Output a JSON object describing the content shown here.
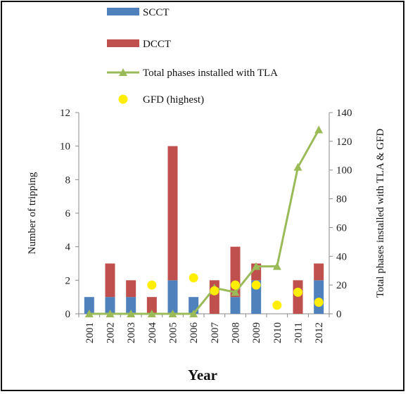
{
  "chart_data": {
    "type": "bar",
    "categories": [
      "2001",
      "2002",
      "2003",
      "2004",
      "2005",
      "2006",
      "2007",
      "2008",
      "2009",
      "2010",
      "2011",
      "2012"
    ],
    "series": [
      {
        "name": "SCCT",
        "kind": "bar",
        "axis": "left",
        "color": "#4f81bd",
        "values": [
          1,
          1,
          1,
          0,
          2,
          1,
          0,
          1,
          2,
          0,
          0,
          2
        ]
      },
      {
        "name": "DCCT",
        "kind": "bar",
        "axis": "left",
        "color": "#c0504d",
        "values": [
          0,
          2,
          1,
          1,
          8,
          0,
          2,
          3,
          1,
          0,
          2,
          1
        ]
      },
      {
        "name": "Total phases installed with TLA",
        "kind": "line",
        "axis": "right",
        "color": "#9bbb59",
        "values": [
          0,
          0,
          0,
          0,
          0,
          0,
          18,
          15,
          33,
          33,
          102,
          128
        ]
      },
      {
        "name": "GFD (highest)",
        "kind": "scatter",
        "axis": "right",
        "color": "#ffee00",
        "values": [
          null,
          null,
          null,
          20,
          null,
          25,
          16,
          20,
          20,
          6,
          15,
          8
        ]
      }
    ],
    "xlabel": "Year",
    "ylabel": "Number of tripping",
    "y2label": "Total phases installed with TLA & GFD",
    "ylim": [
      0,
      12
    ],
    "y2lim": [
      0,
      140
    ],
    "yticks": [
      "0",
      "2",
      "4",
      "6",
      "8",
      "10",
      "12"
    ],
    "y2ticks": [
      "0",
      "20",
      "40",
      "60",
      "80",
      "100",
      "120",
      "140"
    ],
    "grid": false,
    "legend_position": "top"
  }
}
